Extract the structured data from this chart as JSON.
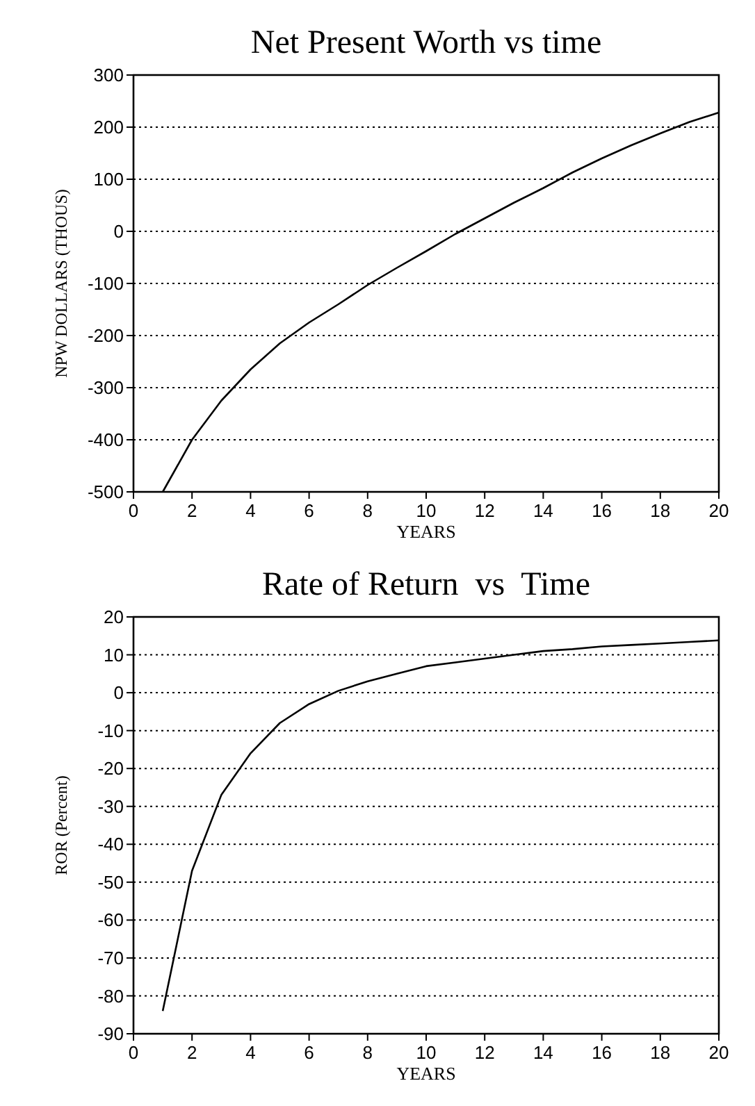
{
  "chart_data": [
    {
      "type": "line",
      "title": "Net Present Worth vs time",
      "xlabel": "YEARS",
      "ylabel": "NPW DOLLARS (THOUS)",
      "x": [
        1,
        2,
        3,
        4,
        5,
        6,
        7,
        8,
        9,
        10,
        11,
        12,
        13,
        14,
        15,
        16,
        17,
        18,
        19,
        20
      ],
      "series": [
        {
          "color": "#000000",
          "values": [
            -500,
            -400,
            -325,
            -265,
            -215,
            -175,
            -140,
            -103,
            -70,
            -38,
            -5,
            25,
            55,
            83,
            113,
            140,
            165,
            188,
            210,
            228
          ]
        }
      ],
      "xlim": [
        0,
        20
      ],
      "xticks": [
        0,
        2,
        4,
        6,
        8,
        10,
        12,
        14,
        16,
        18,
        20
      ],
      "ylim": [
        -500,
        300
      ],
      "yticks": [
        -500,
        -400,
        -300,
        -200,
        -100,
        0,
        100,
        200,
        300
      ],
      "grid": "y",
      "marker": "none",
      "line_style": "solid"
    },
    {
      "type": "line",
      "title": "Rate of Return  vs  Time",
      "xlabel": "YEARS",
      "ylabel": "ROR (Percent)",
      "x": [
        1,
        2,
        3,
        4,
        5,
        6,
        7,
        8,
        9,
        10,
        11,
        12,
        13,
        14,
        15,
        16,
        17,
        18,
        19,
        20
      ],
      "series": [
        {
          "color": "#000000",
          "values": [
            -84,
            -47,
            -27,
            -16,
            -8,
            -3,
            0.5,
            3,
            5,
            7,
            8,
            9,
            10,
            11,
            11.5,
            12.2,
            12.6,
            13,
            13.4,
            13.8
          ]
        }
      ],
      "xlim": [
        0,
        20
      ],
      "xticks": [
        0,
        2,
        4,
        6,
        8,
        10,
        12,
        14,
        16,
        18,
        20
      ],
      "ylim": [
        -90,
        20
      ],
      "yticks": [
        -90,
        -80,
        -70,
        -60,
        -50,
        -40,
        -30,
        -20,
        -10,
        0,
        10,
        20
      ],
      "grid": "y",
      "marker": "none",
      "line_style": "solid"
    }
  ]
}
